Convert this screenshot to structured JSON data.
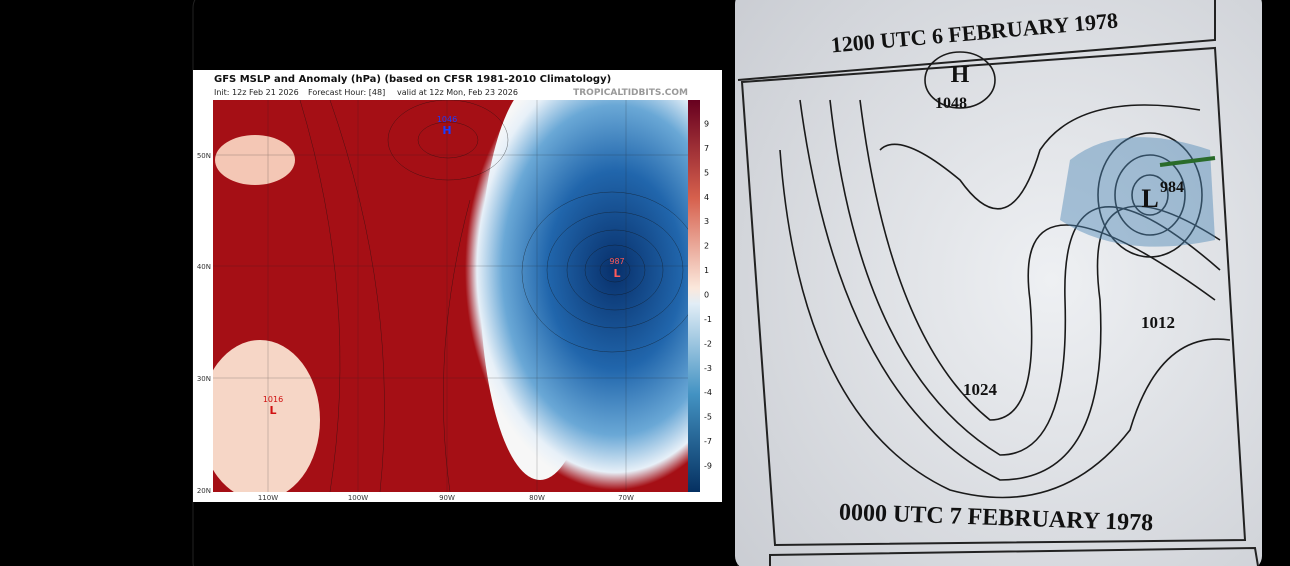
{
  "left_map": {
    "title": "GFS MSLP and Anomaly (hPa) (based on CFSR 1981-2010 Climatology)",
    "init": "Init: 12z Feb 21 2026",
    "forecast": "Forecast Hour: [48]",
    "valid": "valid at 12z Mon, Feb 23 2026",
    "source": "TROPICALTIDBITS.COM",
    "lat_labels": [
      "50N",
      "40N",
      "30N",
      "20N"
    ],
    "lon_labels": [
      "110W",
      "100W",
      "90W",
      "80W",
      "70W"
    ],
    "colorbar_labels": [
      9,
      7,
      5,
      4,
      3,
      2,
      1,
      0,
      -1,
      -2,
      -3,
      -4,
      -5,
      -7,
      -9
    ],
    "high": {
      "pressure": "1046",
      "symbol": "H"
    },
    "low": {
      "pressure": "987",
      "symbol": "L"
    },
    "low_sw": {
      "pressure": "1016",
      "symbol": "L"
    }
  },
  "right_map": {
    "top_caption": "1200 UTC 6 FEBRUARY 1978",
    "high": {
      "symbol": "H",
      "pressure": "1048"
    },
    "low": {
      "pressure": "984",
      "symbol": "L"
    },
    "isobar_1012": "1012",
    "isobar_1024": "1024",
    "bottom_caption": "0000 UTC 7 FEBRUARY 1978"
  }
}
